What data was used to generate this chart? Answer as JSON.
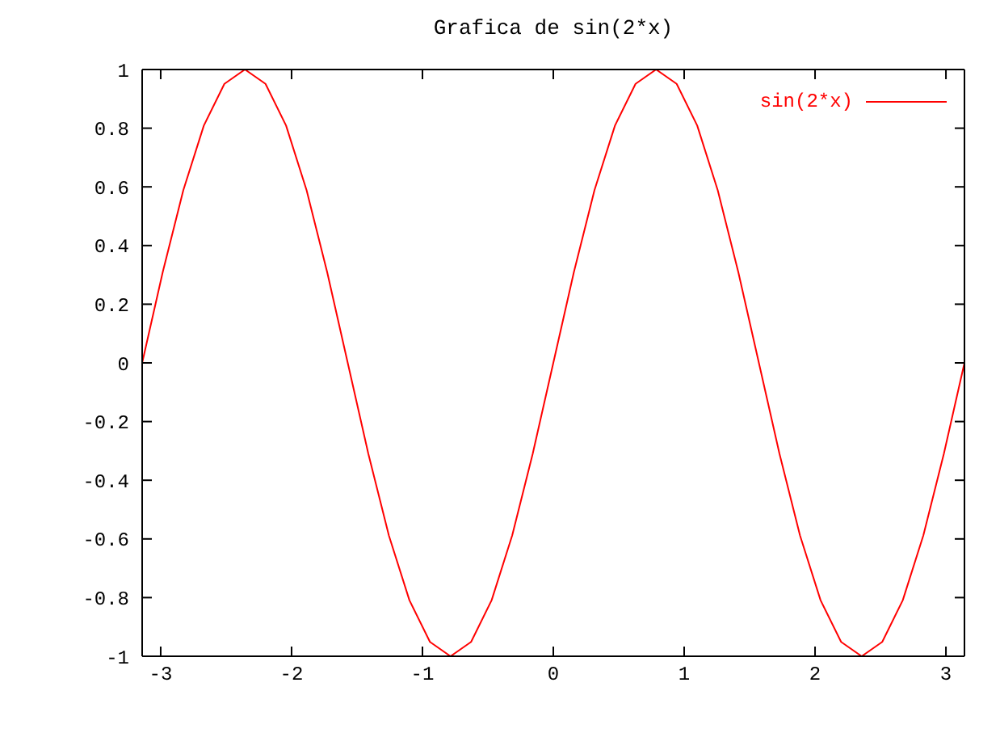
{
  "chart_data": {
    "type": "line",
    "title": "Grafica de sin(2*x)",
    "x": [
      -3.1416,
      -2.9845,
      -2.8274,
      -2.6704,
      -2.5133,
      -2.3562,
      -2.1991,
      -2.042,
      -1.885,
      -1.7279,
      -1.5708,
      -1.4137,
      -1.2566,
      -1.0996,
      -0.9425,
      -0.7854,
      -0.6283,
      -0.4712,
      -0.3142,
      -0.1571,
      0,
      0.1571,
      0.3142,
      0.4712,
      0.6283,
      0.7854,
      0.9425,
      1.0996,
      1.2566,
      1.4137,
      1.5708,
      1.7279,
      1.885,
      2.042,
      2.1991,
      2.3562,
      2.5133,
      2.6704,
      2.8274,
      2.9845,
      3.1416
    ],
    "series": [
      {
        "name": "sin(2*x)",
        "color": "#ff0000",
        "values": [
          0,
          0.309,
          0.588,
          0.809,
          0.951,
          1,
          0.951,
          0.809,
          0.588,
          0.309,
          0,
          -0.309,
          -0.588,
          -0.809,
          -0.951,
          -1,
          -0.951,
          -0.809,
          -0.588,
          -0.309,
          0,
          0.309,
          0.588,
          0.809,
          0.951,
          1,
          0.951,
          0.809,
          0.588,
          0.309,
          0,
          -0.309,
          -0.588,
          -0.809,
          -0.951,
          -1,
          -0.951,
          -0.809,
          -0.588,
          -0.309,
          0
        ]
      }
    ],
    "xlim": [
      -3.1416,
      3.1416
    ],
    "xticks": [
      -3,
      -2,
      -1,
      0,
      1,
      2,
      3
    ],
    "ylim": [
      -1,
      1
    ],
    "yticks": [
      -1,
      -0.8,
      -0.6,
      -0.4,
      -0.2,
      0,
      0.2,
      0.4,
      0.6,
      0.8,
      1
    ],
    "grid": false,
    "legend": "top right",
    "marker": "none",
    "line_style": "solid"
  }
}
